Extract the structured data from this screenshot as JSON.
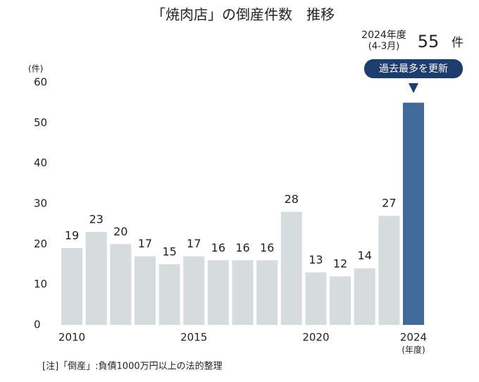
{
  "chart_data": {
    "type": "bar",
    "title": "「焼肉店」の倒産件数　推移",
    "y_unit": "(件)",
    "x_unit": "(年度)",
    "note": "[注]「倒産」:負債1000万円以上の法的整理",
    "annotations": {
      "period": "2024年度",
      "months": "(4-3月)",
      "unit": "件",
      "badge": "過去最多を更新"
    },
    "categories": [
      "2010",
      null,
      null,
      null,
      null,
      "2015",
      null,
      null,
      null,
      null,
      "2020",
      null,
      null,
      null,
      "2024"
    ],
    "values": [
      19,
      23,
      20,
      17,
      15,
      17,
      16,
      16,
      16,
      28,
      13,
      12,
      14,
      27,
      55
    ],
    "colors": [
      "#d6dbde",
      "#d6dbde",
      "#d6dbde",
      "#d6dbde",
      "#d6dbde",
      "#d6dbde",
      "#d6dbde",
      "#d6dbde",
      "#d6dbde",
      "#d6dbde",
      "#d6dbde",
      "#d6dbde",
      "#d6dbde",
      "#d6dbde",
      "#41699a"
    ],
    "ylim": [
      0,
      60
    ],
    "yticks": [
      0,
      10,
      20,
      30,
      40,
      50,
      60
    ],
    "grid": false
  }
}
